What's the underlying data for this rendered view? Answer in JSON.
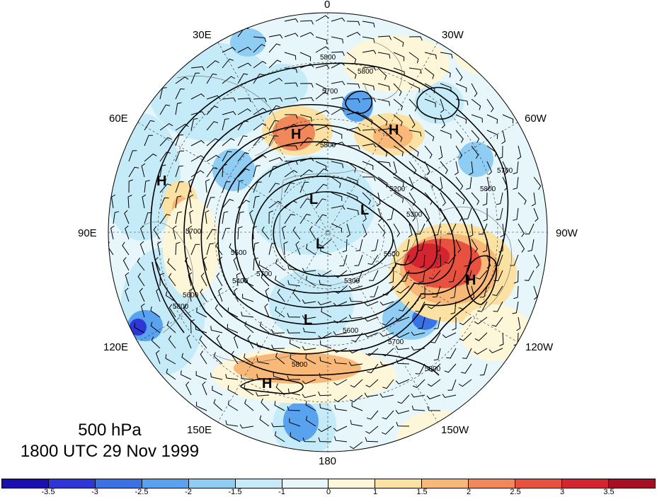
{
  "title": {
    "level": "500 hPa",
    "datetime": "1800 UTC 29 Nov 1999"
  },
  "longitude_labels": {
    "lon_0": "0",
    "lon_30w": "30W",
    "lon_60w": "60W",
    "lon_90w": "90W",
    "lon_120w": "120W",
    "lon_150w": "150W",
    "lon_180": "180",
    "lon_150e": "150E",
    "lon_120e": "120E",
    "lon_90e": "90E",
    "lon_60e": "60E",
    "lon_30e": "30E"
  },
  "pressure_centers": [
    {
      "label": "H"
    },
    {
      "label": "H"
    },
    {
      "label": "H"
    },
    {
      "label": "H"
    },
    {
      "label": "H"
    },
    {
      "label": "L"
    },
    {
      "label": "L"
    },
    {
      "label": "L"
    },
    {
      "label": "L"
    }
  ],
  "contour_labels": {
    "c5800": "5800",
    "c5700": "5700",
    "c5600": "5600",
    "c5500": "5500",
    "c5400": "5400",
    "c5300": "5300",
    "c5200": "5200"
  },
  "colorbar": {
    "colors": [
      "#1a0fb0",
      "#2e37d6",
      "#3a72e6",
      "#58a2ee",
      "#8fcdf5",
      "#c5ebf8",
      "#e6f6fb",
      "#fdf6d9",
      "#fbe1a2",
      "#f8b877",
      "#f0885a",
      "#e85040",
      "#d3242f",
      "#a40f22"
    ],
    "ticks": [
      "-3.5",
      "-3",
      "-2.5",
      "-2",
      "-1.5",
      "-1",
      "0",
      "1",
      "1.5",
      "2",
      "2.5",
      "3",
      "3.5"
    ]
  }
}
